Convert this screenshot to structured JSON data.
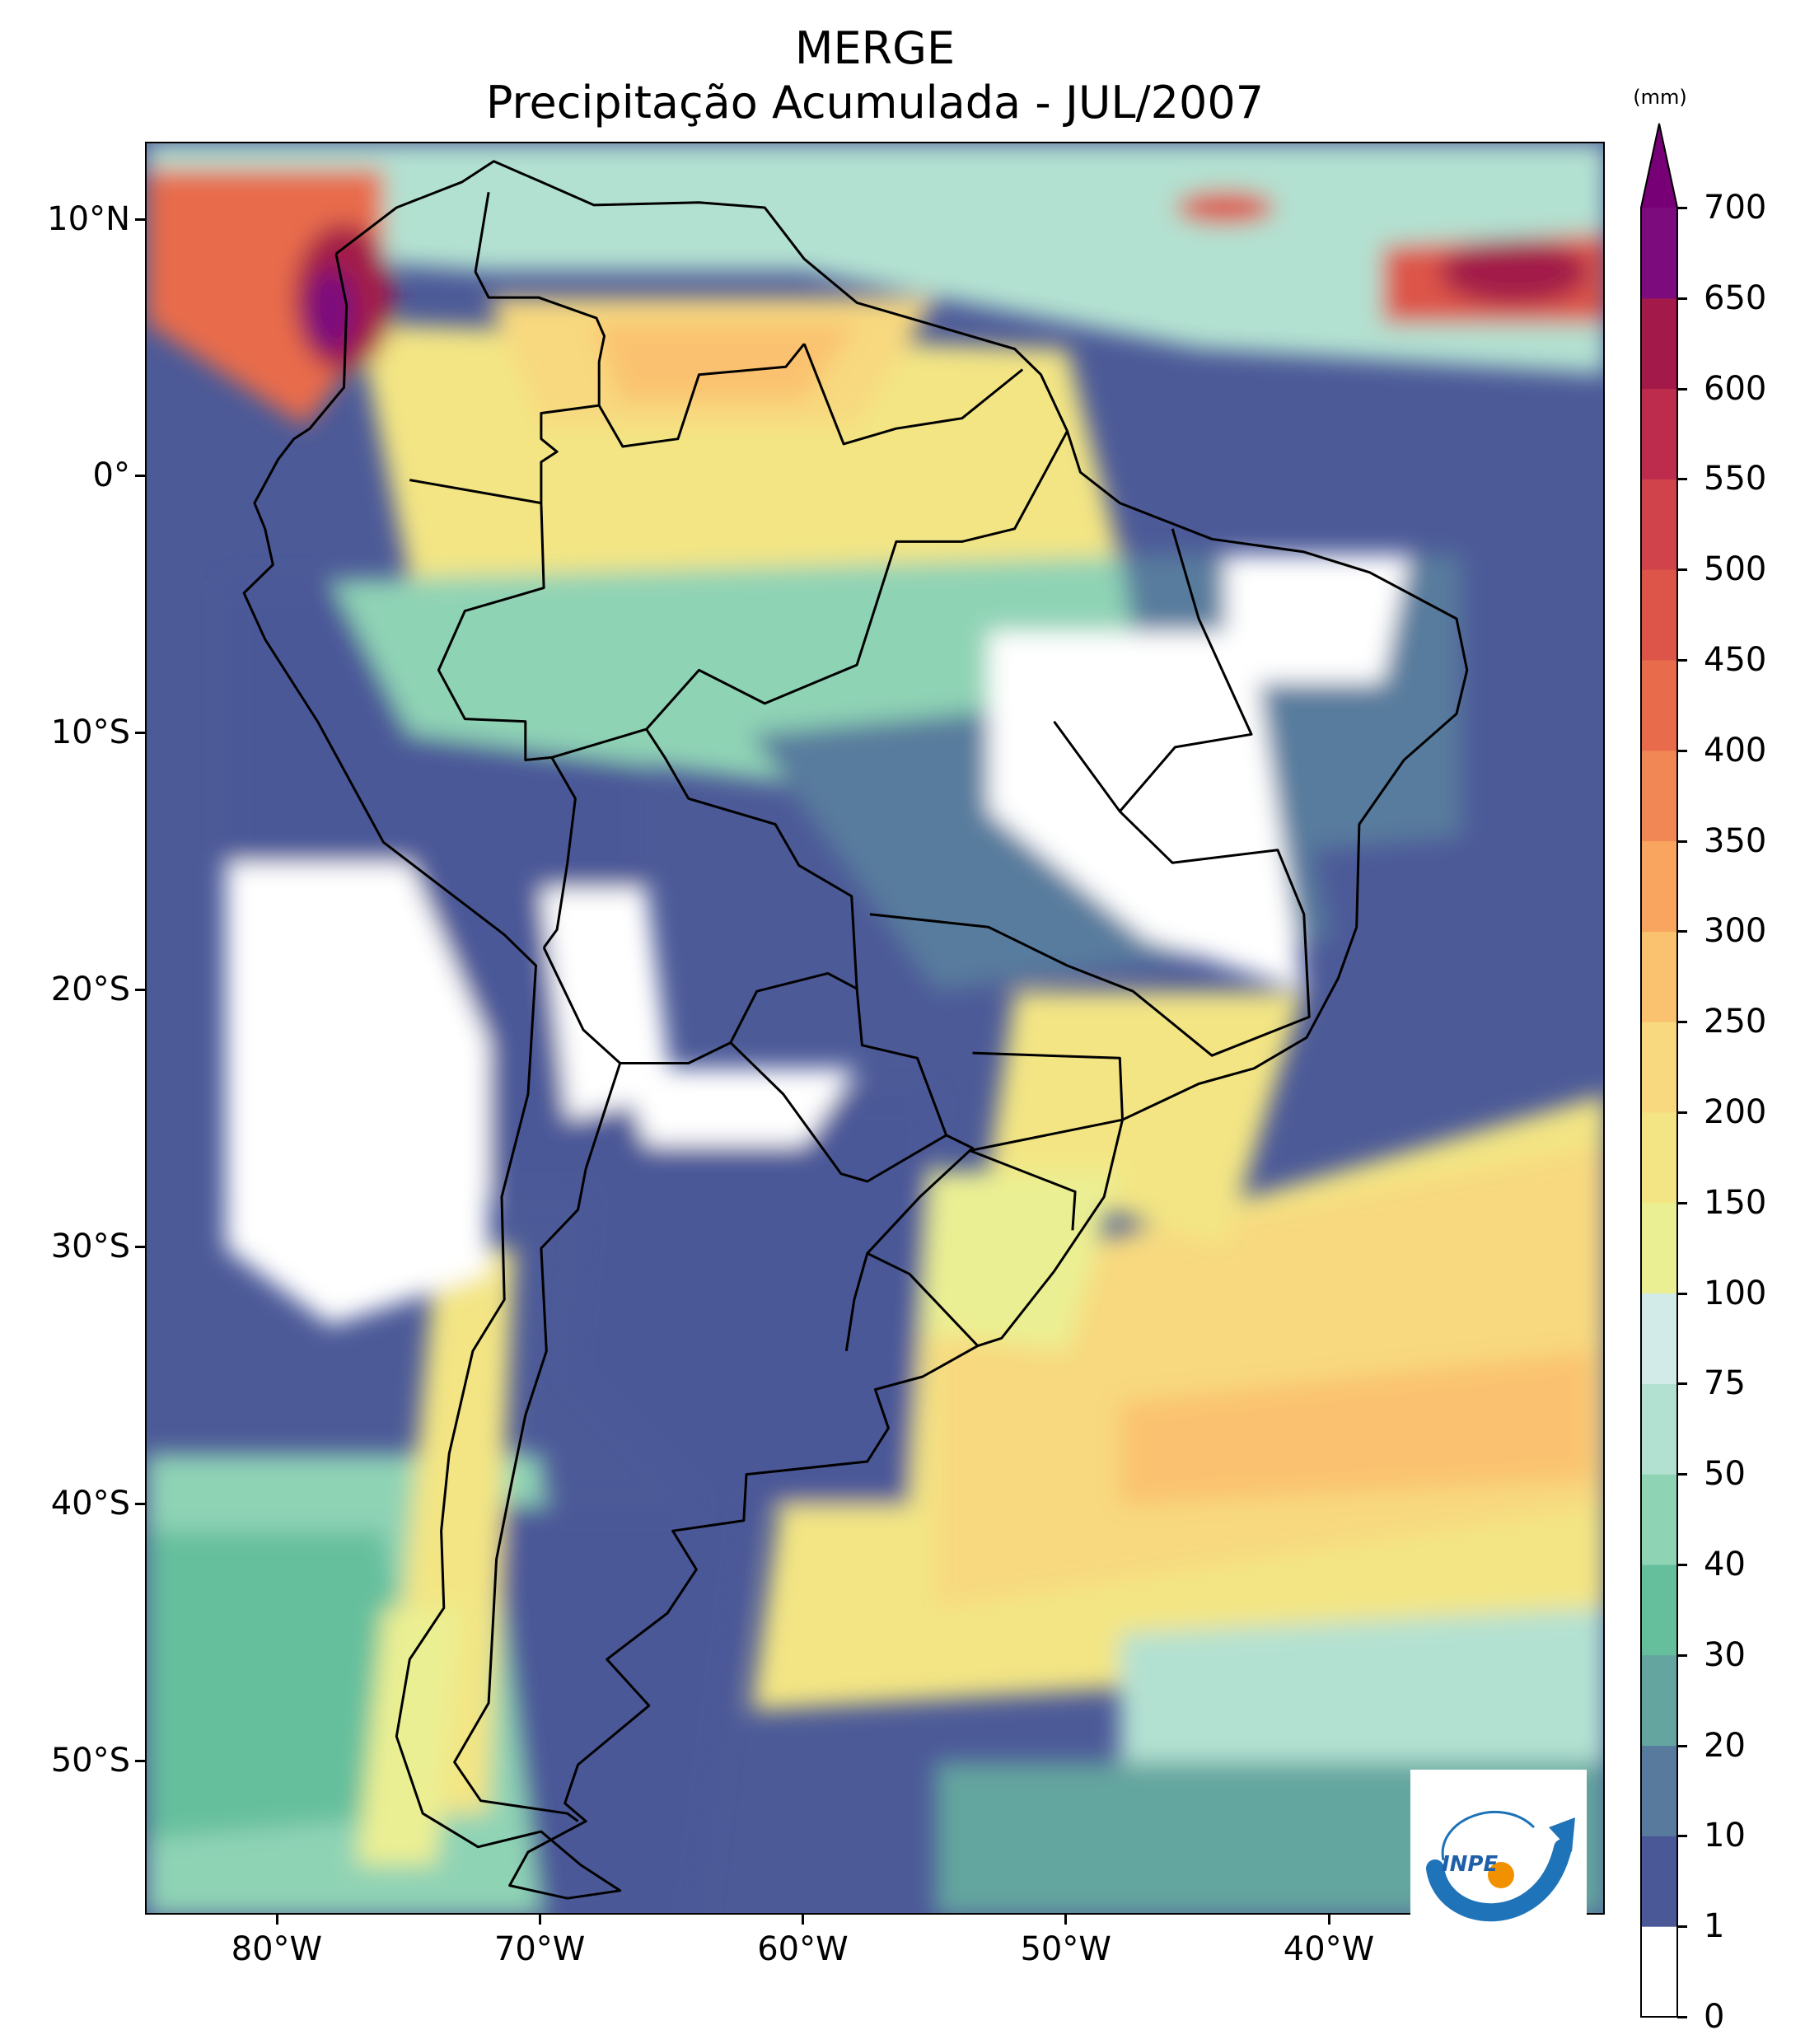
{
  "title": {
    "line1": "MERGE",
    "line2": "Precipitação Acumulada - JUL/2007"
  },
  "map": {
    "extent": {
      "lon_min": -85,
      "lon_max": -29.5,
      "lat_min": -56,
      "lat_max": 13
    }
  },
  "axes": {
    "lat_ticks": [
      {
        "lat": 10,
        "label": "10°N"
      },
      {
        "lat": 0,
        "label": "0°"
      },
      {
        "lat": -10,
        "label": "10°S"
      },
      {
        "lat": -20,
        "label": "20°S"
      },
      {
        "lat": -30,
        "label": "30°S"
      },
      {
        "lat": -40,
        "label": "40°S"
      },
      {
        "lat": -50,
        "label": "50°S"
      }
    ],
    "lon_ticks": [
      {
        "lon": -80,
        "label": "80°W"
      },
      {
        "lon": -70,
        "label": "70°W"
      },
      {
        "lon": -60,
        "label": "60°W"
      },
      {
        "lon": -50,
        "label": "50°W"
      },
      {
        "lon": -40,
        "label": "40°W"
      }
    ]
  },
  "colorbar": {
    "unit": "(mm)",
    "levels": [
      "0",
      "1",
      "10",
      "20",
      "30",
      "40",
      "50",
      "75",
      "100",
      "150",
      "200",
      "250",
      "300",
      "350",
      "400",
      "450",
      "500",
      "550",
      "600",
      "650",
      "700"
    ],
    "colors": [
      "#ffffff",
      "#4b5898",
      "#587b9d",
      "#64a59f",
      "#65bf9d",
      "#8fd3b5",
      "#b3e1d1",
      "#d3ebe8",
      "#ebef93",
      "#f3e584",
      "#f8d97f",
      "#fac26f",
      "#f9a45f",
      "#f28756",
      "#e86c4c",
      "#dd5448",
      "#d0434b",
      "#bd2c4d",
      "#a31a4a",
      "#7c0c7d"
    ],
    "extend_color": "#770077"
  },
  "logo": {
    "text": "INPE"
  }
}
